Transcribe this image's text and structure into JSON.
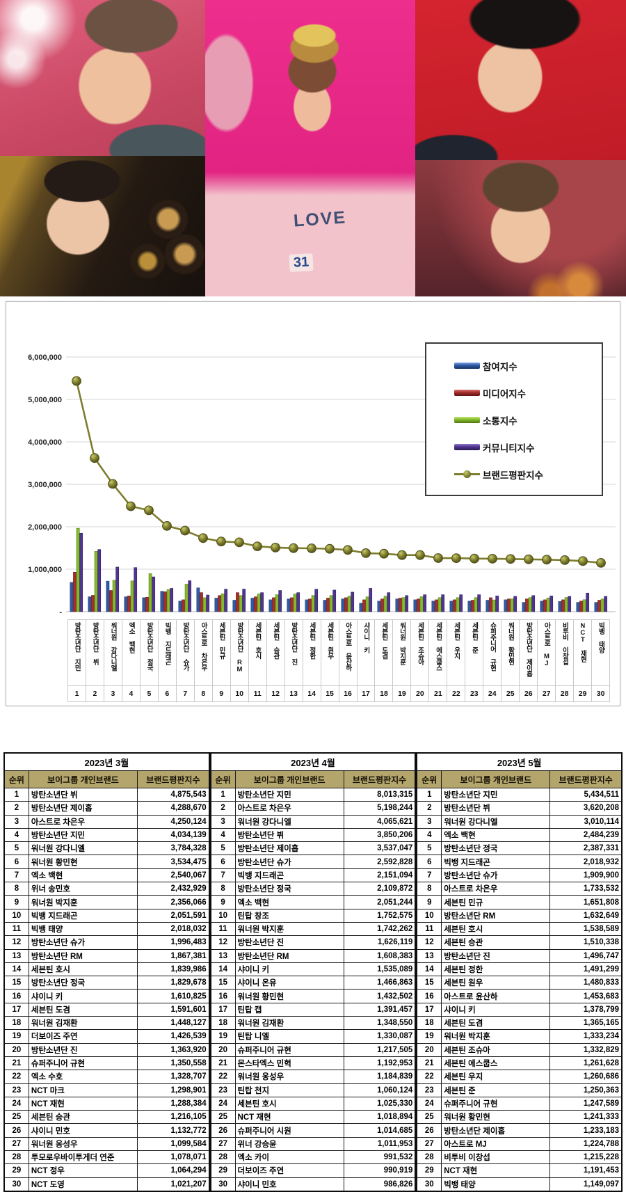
{
  "collage": {
    "shirt_text": "LOVE",
    "shirt_number": "31"
  },
  "chart_data": {
    "type": "bar",
    "title": "",
    "xlabel": "",
    "ylabel": "",
    "ylim": [
      0,
      6000000
    ],
    "grid": true,
    "legend_position": "top-right",
    "y_tick_labels": [
      "6,000,000",
      "5,000,000",
      "4,000,000",
      "3,000,000",
      "2,000,000",
      "1,000,000"
    ],
    "y_tick_values": [
      6000000,
      5000000,
      4000000,
      3000000,
      2000000,
      1000000
    ],
    "zero_label": "-",
    "categories": [
      "방탄소년단 지민",
      "방탄소년단 뷔",
      "워너원 강다니엘",
      "엑소 백현",
      "방탄소년단 정국",
      "빅뱅 지드래곤",
      "방탄소년단 슈가",
      "아스트로 차은우",
      "세븐틴 민규",
      "방탄소년단 RM",
      "세븐틴 호시",
      "세븐틴 승관",
      "방탄소년단 진",
      "세븐틴 정한",
      "세븐틴 원우",
      "아스트로 윤산하",
      "샤이니 키",
      "세븐틴 도겸",
      "워너원 박지훈",
      "세븐틴 조슈아",
      "세븐틴 에스쿱스",
      "세븐틴 우지",
      "세븐틴 준",
      "슈퍼주니어 규현",
      "워너원 황민현",
      "방탄소년단 제이홉",
      "아스트로 MJ",
      "비투비 이창섭",
      "NCT 재현",
      "빅뱅 태양"
    ],
    "x_numbers": [
      1,
      2,
      3,
      4,
      5,
      6,
      7,
      8,
      9,
      10,
      11,
      12,
      13,
      14,
      15,
      16,
      17,
      18,
      19,
      20,
      21,
      22,
      23,
      24,
      25,
      26,
      27,
      28,
      29,
      30
    ],
    "series": [
      {
        "name": "참여지수",
        "type": "bar",
        "color": "#2f5aa5",
        "light": "#7ea3e6",
        "dark": "#17335f",
        "values": [
          690000,
          350000,
          720000,
          350000,
          330000,
          480000,
          250000,
          560000,
          320000,
          270000,
          320000,
          280000,
          300000,
          280000,
          270000,
          300000,
          200000,
          250000,
          300000,
          280000,
          250000,
          250000,
          250000,
          270000,
          280000,
          220000,
          250000,
          240000,
          220000,
          220000
        ]
      },
      {
        "name": "미디어지수",
        "type": "bar",
        "color": "#a32e2c",
        "light": "#d9736f",
        "dark": "#5f1413",
        "values": [
          930000,
          385000,
          500000,
          370000,
          340000,
          468932,
          279900,
          450000,
          380000,
          450000,
          350000,
          330000,
          330000,
          300000,
          320000,
          330000,
          280000,
          300000,
          320000,
          300000,
          280000,
          280000,
          270000,
          330000,
          300000,
          300000,
          280000,
          280000,
          250000,
          270000
        ]
      },
      {
        "name": "소통지수",
        "type": "bar",
        "color": "#84ba2b",
        "light": "#c2e573",
        "dark": "#4e7312",
        "values": [
          1965000,
          1420000,
          740000,
          724239,
          897331,
          520000,
          650000,
          330000,
          420000,
          380000,
          418589,
          400338,
          416747,
          381299,
          380833,
          363683,
          348799,
          365165,
          333234,
          352829,
          331628,
          330686,
          330363,
          277589,
          301333,
          333183,
          324788,
          335228,
          281453,
          299097
        ]
      },
      {
        "name": "커뮤니티지수",
        "type": "bar",
        "color": "#503590",
        "light": "#8f76c9",
        "dark": "#2a1b52",
        "values": [
          1849511,
          1465208,
          1050114,
          1040000,
          820000,
          550000,
          730000,
          393532,
          531808,
          532649,
          450000,
          500000,
          450000,
          530000,
          510000,
          460000,
          550000,
          450000,
          380000,
          400000,
          400000,
          400000,
          400000,
          370000,
          360000,
          380000,
          370000,
          360000,
          440000,
          360000
        ]
      },
      {
        "name": "브랜드평판지수",
        "type": "line",
        "color": "#7d7d2d",
        "light": "#c9c96a",
        "dark": "#4e4e18",
        "values": [
          5434511,
          3620208,
          3010114,
          2484239,
          2387331,
          2018932,
          1909900,
          1733532,
          1651808,
          1632649,
          1538589,
          1510338,
          1496747,
          1491299,
          1480833,
          1453683,
          1378799,
          1365165,
          1333234,
          1332829,
          1261628,
          1260686,
          1250363,
          1247589,
          1241333,
          1233183,
          1224788,
          1215228,
          1191453,
          1149097
        ]
      }
    ]
  },
  "tables": [
    {
      "title": "2023년 3월",
      "columns": [
        "순위",
        "보이그룹 개인브랜드",
        "브랜드평판지수"
      ],
      "rows": [
        [
          "1",
          "방탄소년단 뷔",
          "4,875,543"
        ],
        [
          "2",
          "방탄소년단 제이홉",
          "4,288,670"
        ],
        [
          "3",
          "아스트로 차은우",
          "4,250,124"
        ],
        [
          "4",
          "방탄소년단 지민",
          "4,034,139"
        ],
        [
          "5",
          "워너원 강다니엘",
          "3,784,328"
        ],
        [
          "6",
          "워너원 황민현",
          "3,534,475"
        ],
        [
          "7",
          "엑소 백현",
          "2,540,067"
        ],
        [
          "8",
          "위너 송민호",
          "2,432,929"
        ],
        [
          "9",
          "워너원 박지훈",
          "2,356,066"
        ],
        [
          "10",
          "빅뱅 지드래곤",
          "2,051,591"
        ],
        [
          "11",
          "빅뱅 태양",
          "2,018,032"
        ],
        [
          "12",
          "방탄소년단 슈가",
          "1,996,483"
        ],
        [
          "13",
          "방탄소년단 RM",
          "1,867,381"
        ],
        [
          "14",
          "세븐틴 호시",
          "1,839,986"
        ],
        [
          "15",
          "방탄소년단 정국",
          "1,829,678"
        ],
        [
          "16",
          "샤이니 키",
          "1,610,825"
        ],
        [
          "17",
          "세븐틴 도겸",
          "1,591,601"
        ],
        [
          "18",
          "워너원 김재환",
          "1,448,127"
        ],
        [
          "19",
          "더보이즈 주연",
          "1,426,539"
        ],
        [
          "20",
          "방탄소년단 진",
          "1,363,920"
        ],
        [
          "21",
          "슈퍼주니어 규현",
          "1,350,558"
        ],
        [
          "22",
          "엑소 수호",
          "1,328,707"
        ],
        [
          "23",
          "NCT 마크",
          "1,298,901"
        ],
        [
          "24",
          "NCT 재현",
          "1,288,384"
        ],
        [
          "25",
          "세븐틴 승관",
          "1,216,105"
        ],
        [
          "26",
          "샤이니 민호",
          "1,132,772"
        ],
        [
          "27",
          "워너원 옹성우",
          "1,099,584"
        ],
        [
          "28",
          "투모로우바이투게더 연준",
          "1,078,071"
        ],
        [
          "29",
          "NCT 정우",
          "1,064,294"
        ],
        [
          "30",
          "NCT 도영",
          "1,021,207"
        ]
      ]
    },
    {
      "title": "2023년 4월",
      "columns": [
        "순위",
        "보이그룹 개인브랜드",
        "브랜드평판지수"
      ],
      "rows": [
        [
          "1",
          "방탄소년단 지민",
          "8,013,315"
        ],
        [
          "2",
          "아스트로 차은우",
          "5,198,244"
        ],
        [
          "3",
          "워너원 강다니엘",
          "4,065,621"
        ],
        [
          "4",
          "방탄소년단 뷔",
          "3,850,206"
        ],
        [
          "5",
          "방탄소년단 제이홉",
          "3,537,047"
        ],
        [
          "6",
          "방탄소년단 슈가",
          "2,592,828"
        ],
        [
          "7",
          "빅뱅 지드래곤",
          "2,151,094"
        ],
        [
          "8",
          "방탄소년단 정국",
          "2,109,872"
        ],
        [
          "9",
          "엑소 백현",
          "2,051,244"
        ],
        [
          "10",
          "틴탑 창조",
          "1,752,575"
        ],
        [
          "11",
          "워너원 박지훈",
          "1,742,262"
        ],
        [
          "12",
          "방탄소년단 진",
          "1,626,119"
        ],
        [
          "13",
          "방탄소년단 RM",
          "1,608,383"
        ],
        [
          "14",
          "샤이니 키",
          "1,535,089"
        ],
        [
          "15",
          "샤이니 온유",
          "1,466,863"
        ],
        [
          "16",
          "워너원 황민현",
          "1,432,502"
        ],
        [
          "17",
          "틴탑 캡",
          "1,391,457"
        ],
        [
          "18",
          "워너원 김재환",
          "1,348,550"
        ],
        [
          "19",
          "틴탑 니엘",
          "1,330,087"
        ],
        [
          "20",
          "슈퍼주니어 규현",
          "1,217,505"
        ],
        [
          "21",
          "몬스타엑스 민혁",
          "1,192,953"
        ],
        [
          "22",
          "워너원 옹성우",
          "1,184,839"
        ],
        [
          "23",
          "틴탑 천지",
          "1,060,124"
        ],
        [
          "24",
          "세븐틴 호시",
          "1,025,330"
        ],
        [
          "25",
          "NCT 재현",
          "1,018,894"
        ],
        [
          "26",
          "슈퍼주니어 시원",
          "1,014,685"
        ],
        [
          "27",
          "위너 강승윤",
          "1,011,953"
        ],
        [
          "28",
          "엑소 카이",
          "991,532"
        ],
        [
          "29",
          "더보이즈 주연",
          "990,919"
        ],
        [
          "30",
          "샤이니 민호",
          "986,826"
        ]
      ]
    },
    {
      "title": "2023년 5월",
      "columns": [
        "순위",
        "보이그룹 개인브랜드",
        "브랜드평판지수"
      ],
      "rows": [
        [
          "1",
          "방탄소년단 지민",
          "5,434,511"
        ],
        [
          "2",
          "방탄소년단 뷔",
          "3,620,208"
        ],
        [
          "3",
          "워너원 강다니엘",
          "3,010,114"
        ],
        [
          "4",
          "엑소 백현",
          "2,484,239"
        ],
        [
          "5",
          "방탄소년단 정국",
          "2,387,331"
        ],
        [
          "6",
          "빅뱅 지드래곤",
          "2,018,932"
        ],
        [
          "7",
          "방탄소년단 슈가",
          "1,909,900"
        ],
        [
          "8",
          "아스트로 차은우",
          "1,733,532"
        ],
        [
          "9",
          "세븐틴 민규",
          "1,651,808"
        ],
        [
          "10",
          "방탄소년단 RM",
          "1,632,649"
        ],
        [
          "11",
          "세븐틴 호시",
          "1,538,589"
        ],
        [
          "12",
          "세븐틴 승관",
          "1,510,338"
        ],
        [
          "13",
          "방탄소년단 진",
          "1,496,747"
        ],
        [
          "14",
          "세븐틴 정한",
          "1,491,299"
        ],
        [
          "15",
          "세븐틴 원우",
          "1,480,833"
        ],
        [
          "16",
          "아스트로 윤산하",
          "1,453,683"
        ],
        [
          "17",
          "샤이니 키",
          "1,378,799"
        ],
        [
          "18",
          "세븐틴 도겸",
          "1,365,165"
        ],
        [
          "19",
          "워너원 박지훈",
          "1,333,234"
        ],
        [
          "20",
          "세븐틴 조슈아",
          "1,332,829"
        ],
        [
          "21",
          "세븐틴 에스쿱스",
          "1,261,628"
        ],
        [
          "22",
          "세븐틴 우지",
          "1,260,686"
        ],
        [
          "23",
          "세븐틴 준",
          "1,250,363"
        ],
        [
          "24",
          "슈퍼주니어 규현",
          "1,247,589"
        ],
        [
          "25",
          "워너원 황민현",
          "1,241,333"
        ],
        [
          "26",
          "방탄소년단 제이홉",
          "1,233,183"
        ],
        [
          "27",
          "아스트로 MJ",
          "1,224,788"
        ],
        [
          "28",
          "비투비 이창섭",
          "1,215,228"
        ],
        [
          "29",
          "NCT 재현",
          "1,191,453"
        ],
        [
          "30",
          "빅뱅 태양",
          "1,149,097"
        ]
      ]
    }
  ]
}
